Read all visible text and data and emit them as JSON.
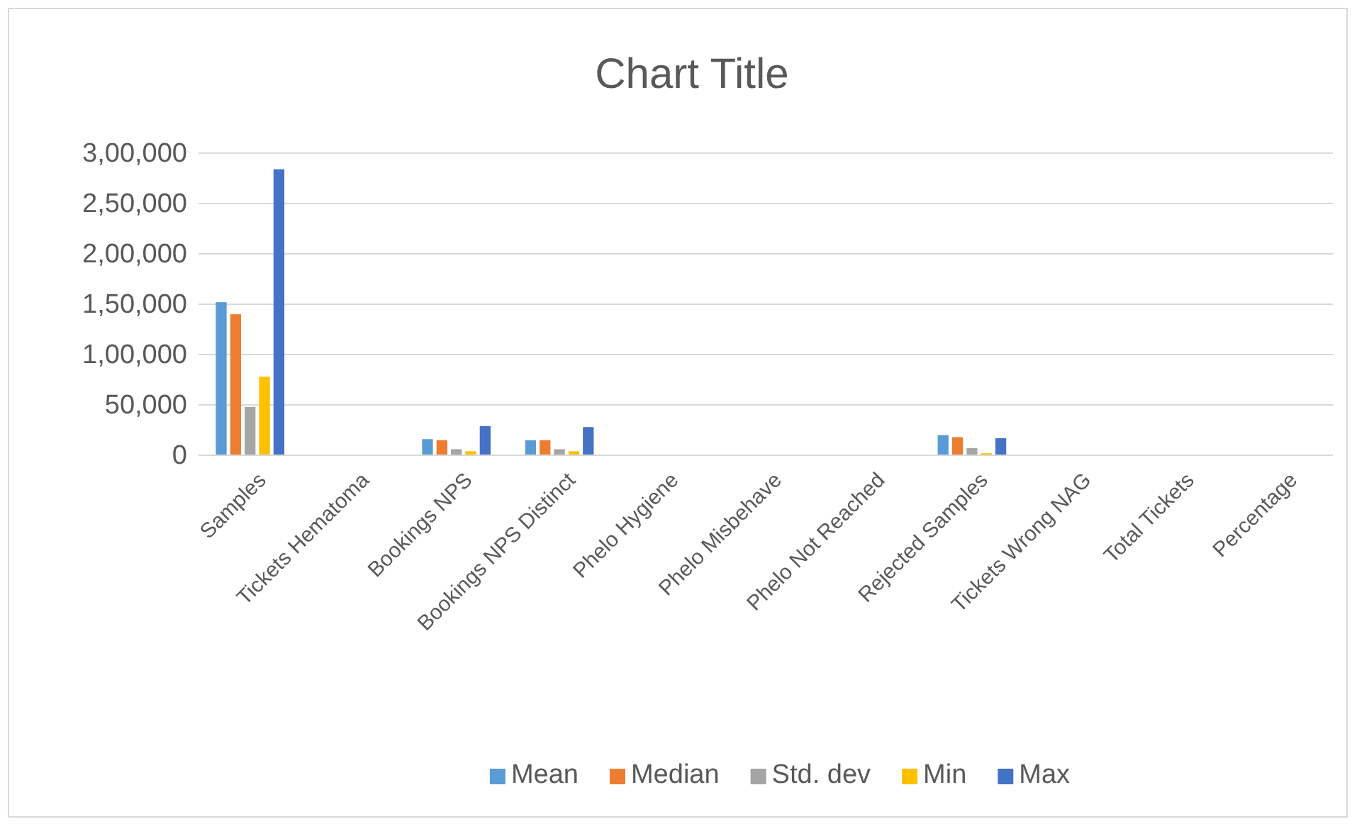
{
  "chart_data": {
    "type": "bar",
    "title": "Chart Title",
    "categories": [
      "Samples",
      "Tickets Hematoma",
      "Bookings NPS",
      "Bookings NPS Distinct",
      "Phelo Hygiene",
      "Phelo Misbehave",
      "Phelo Not Reached",
      "Rejected Samples",
      "Tickets Wrong NAG",
      "Total Tickets",
      "Percentage"
    ],
    "series": [
      {
        "name": "Mean",
        "color": "#5b9bd5",
        "values": [
          152000,
          0,
          16000,
          15000,
          0,
          0,
          0,
          20000,
          0,
          null,
          0
        ]
      },
      {
        "name": "Median",
        "color": "#ed7d31",
        "values": [
          140000,
          0,
          15000,
          15000,
          0,
          0,
          0,
          18000,
          0,
          null,
          0
        ]
      },
      {
        "name": "Std. dev",
        "color": "#a5a5a5",
        "values": [
          48000,
          0,
          6000,
          6000,
          0,
          0,
          0,
          7000,
          0,
          0,
          0
        ]
      },
      {
        "name": "Min",
        "color": "#ffc000",
        "values": [
          78000,
          0,
          4000,
          4000,
          0,
          0,
          0,
          2000,
          0,
          0,
          0
        ]
      },
      {
        "name": "Max",
        "color": "#4472c4",
        "values": [
          284000,
          0,
          29000,
          28000,
          0,
          0,
          0,
          17000,
          null,
          null,
          0
        ]
      }
    ],
    "ylim": [
      0,
      300000
    ],
    "yticks": [
      0,
      {
        "value": 50000,
        "label": "50,000"
      },
      {
        "value": 100000,
        "label": "1,00,000"
      },
      {
        "value": 150000,
        "label": "1,50,000"
      },
      {
        "value": 200000,
        "label": "2,00,000"
      },
      {
        "value": 250000,
        "label": "2,50,000"
      },
      {
        "value": 300000,
        "label": "3,00,000"
      }
    ],
    "grid": "y",
    "legend": "bottom"
  }
}
